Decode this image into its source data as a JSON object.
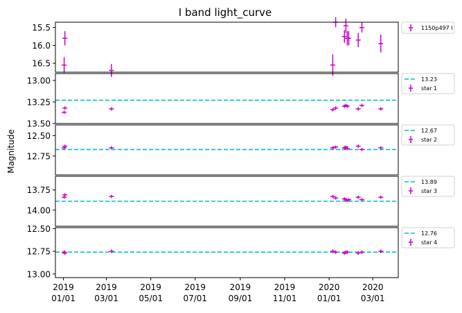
{
  "chart_data": {
    "type": "scatter",
    "title": "I band light_curve",
    "ylabel": "Magnitude",
    "x_tick_labels": [
      [
        "2019",
        "01/01"
      ],
      [
        "2019",
        "03/01"
      ],
      [
        "2019",
        "05/01"
      ],
      [
        "2019",
        "07/01"
      ],
      [
        "2019",
        "09/01"
      ],
      [
        "2019",
        "11/01"
      ],
      [
        "2020",
        "01/01"
      ],
      [
        "2020",
        "03/01"
      ]
    ],
    "x_tick_dates": [
      "2019-01-01",
      "2019-03-01",
      "2019-05-01",
      "2019-07-01",
      "2019-09-01",
      "2019-11-01",
      "2020-01-01",
      "2020-03-01"
    ],
    "xlim": [
      "2018-12-21",
      "2020-04-05"
    ],
    "y_inverted": true,
    "marker_color": "#cc00cc",
    "reference_line_color": "#00bfbf",
    "panels": [
      {
        "ylim": [
          16.75,
          15.35
        ],
        "yticks": [
          "15.5",
          "16.0",
          "16.5"
        ],
        "ytick_values": [
          15.5,
          16.0,
          16.5
        ],
        "reference_line": null,
        "legend": [
          {
            "kind": "errorbar",
            "label": "1150p497 I"
          }
        ],
        "points": [
          {
            "date": "2019-01-02",
            "mag": 16.55,
            "err": 0.22
          },
          {
            "date": "2019-01-03",
            "mag": 15.8,
            "err": 0.2
          },
          {
            "date": "2019-03-08",
            "mag": 16.7,
            "err": 0.18
          },
          {
            "date": "2020-01-06",
            "mag": 16.55,
            "err": 0.3
          },
          {
            "date": "2020-01-10",
            "mag": 15.35,
            "err": 0.14
          },
          {
            "date": "2020-01-22",
            "mag": 15.75,
            "err": 0.18
          },
          {
            "date": "2020-01-24",
            "mag": 15.45,
            "err": 0.2
          },
          {
            "date": "2020-01-26",
            "mag": 15.8,
            "err": 0.2
          },
          {
            "date": "2020-01-28",
            "mag": 15.8,
            "err": 0.2
          },
          {
            "date": "2020-02-10",
            "mag": 15.85,
            "err": 0.2
          },
          {
            "date": "2020-02-15",
            "mag": 15.5,
            "err": 0.14
          },
          {
            "date": "2020-03-12",
            "mag": 15.95,
            "err": 0.25
          }
        ]
      },
      {
        "ylim": [
          13.5,
          12.92
        ],
        "yticks": [
          "13.00",
          "13.25",
          "13.50"
        ],
        "ytick_values": [
          13.0,
          13.25,
          13.5
        ],
        "reference_line": 13.23,
        "legend": [
          {
            "kind": "line",
            "label": "13.23"
          },
          {
            "kind": "errorbar",
            "label": "star 1"
          }
        ],
        "points": [
          {
            "date": "2019-01-02",
            "mag": 13.37,
            "err": 0.02
          },
          {
            "date": "2019-01-03",
            "mag": 13.32,
            "err": 0.02
          },
          {
            "date": "2019-03-08",
            "mag": 13.33,
            "err": 0.02
          },
          {
            "date": "2020-01-06",
            "mag": 13.34,
            "err": 0.02
          },
          {
            "date": "2020-01-10",
            "mag": 13.32,
            "err": 0.02
          },
          {
            "date": "2020-01-22",
            "mag": 13.3,
            "err": 0.02
          },
          {
            "date": "2020-01-24",
            "mag": 13.29,
            "err": 0.02
          },
          {
            "date": "2020-01-26",
            "mag": 13.3,
            "err": 0.02
          },
          {
            "date": "2020-02-10",
            "mag": 13.33,
            "err": 0.02
          },
          {
            "date": "2020-02-15",
            "mag": 13.29,
            "err": 0.02
          },
          {
            "date": "2020-03-12",
            "mag": 13.33,
            "err": 0.02
          }
        ]
      },
      {
        "ylim": [
          12.98,
          12.37
        ],
        "yticks": [
          "12.50",
          "12.75"
        ],
        "ytick_values": [
          12.5,
          12.75
        ],
        "reference_line": 12.67,
        "legend": [
          {
            "kind": "line",
            "label": "12.67"
          },
          {
            "kind": "errorbar",
            "label": "star 2"
          }
        ],
        "points": [
          {
            "date": "2019-01-02",
            "mag": 12.65,
            "err": 0.02
          },
          {
            "date": "2019-01-03",
            "mag": 12.63,
            "err": 0.02
          },
          {
            "date": "2019-03-08",
            "mag": 12.65,
            "err": 0.02
          },
          {
            "date": "2020-01-06",
            "mag": 12.65,
            "err": 0.02
          },
          {
            "date": "2020-01-10",
            "mag": 12.64,
            "err": 0.02
          },
          {
            "date": "2020-01-22",
            "mag": 12.65,
            "err": 0.02
          },
          {
            "date": "2020-01-24",
            "mag": 12.64,
            "err": 0.02
          },
          {
            "date": "2020-01-26",
            "mag": 12.66,
            "err": 0.02
          },
          {
            "date": "2020-02-10",
            "mag": 12.63,
            "err": 0.02
          },
          {
            "date": "2020-02-15",
            "mag": 12.67,
            "err": 0.02
          },
          {
            "date": "2020-03-12",
            "mag": 12.65,
            "err": 0.02
          }
        ]
      },
      {
        "ylim": [
          14.2,
          13.58
        ],
        "yticks": [
          "13.75",
          "14.00"
        ],
        "ytick_values": [
          13.75,
          14.0
        ],
        "reference_line": 13.89,
        "legend": [
          {
            "kind": "line",
            "label": "13.89"
          },
          {
            "kind": "errorbar",
            "label": "star 3"
          }
        ],
        "points": [
          {
            "date": "2019-01-02",
            "mag": 13.84,
            "err": 0.02
          },
          {
            "date": "2019-01-03",
            "mag": 13.81,
            "err": 0.02
          },
          {
            "date": "2019-03-08",
            "mag": 13.83,
            "err": 0.02
          },
          {
            "date": "2020-01-06",
            "mag": 13.83,
            "err": 0.02
          },
          {
            "date": "2020-01-10",
            "mag": 13.85,
            "err": 0.02
          },
          {
            "date": "2020-01-22",
            "mag": 13.86,
            "err": 0.02
          },
          {
            "date": "2020-01-24",
            "mag": 13.87,
            "err": 0.02
          },
          {
            "date": "2020-01-26",
            "mag": 13.88,
            "err": 0.02
          },
          {
            "date": "2020-01-28",
            "mag": 13.87,
            "err": 0.02
          },
          {
            "date": "2020-02-10",
            "mag": 13.84,
            "err": 0.02
          },
          {
            "date": "2020-02-15",
            "mag": 13.87,
            "err": 0.02
          },
          {
            "date": "2020-03-12",
            "mag": 13.84,
            "err": 0.02
          }
        ]
      },
      {
        "ylim": [
          13.04,
          12.49
        ],
        "yticks": [
          "12.50",
          "12.75",
          "13.00"
        ],
        "ytick_values": [
          12.5,
          12.75,
          13.0
        ],
        "reference_line": 12.76,
        "legend": [
          {
            "kind": "line",
            "label": "12.76"
          },
          {
            "kind": "errorbar",
            "label": "star 4"
          }
        ],
        "points": [
          {
            "date": "2019-01-02",
            "mag": 12.76,
            "err": 0.02
          },
          {
            "date": "2019-01-03",
            "mag": 12.77,
            "err": 0.02
          },
          {
            "date": "2019-03-08",
            "mag": 12.75,
            "err": 0.02
          },
          {
            "date": "2020-01-06",
            "mag": 12.75,
            "err": 0.02
          },
          {
            "date": "2020-01-10",
            "mag": 12.76,
            "err": 0.02
          },
          {
            "date": "2020-01-22",
            "mag": 12.77,
            "err": 0.02
          },
          {
            "date": "2020-01-24",
            "mag": 12.76,
            "err": 0.02
          },
          {
            "date": "2020-01-26",
            "mag": 12.76,
            "err": 0.02
          },
          {
            "date": "2020-02-10",
            "mag": 12.77,
            "err": 0.02
          },
          {
            "date": "2020-02-15",
            "mag": 12.76,
            "err": 0.02
          },
          {
            "date": "2020-03-12",
            "mag": 12.75,
            "err": 0.02
          }
        ]
      }
    ]
  }
}
